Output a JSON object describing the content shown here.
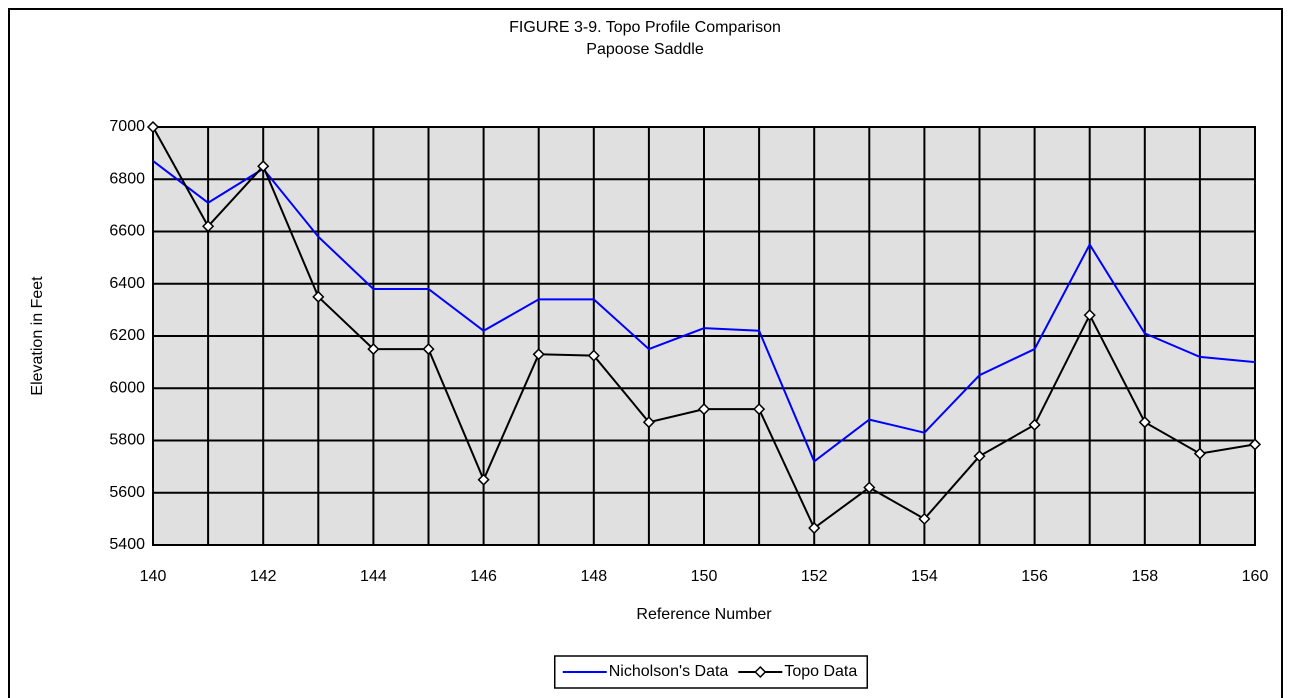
{
  "chart_data": {
    "type": "line",
    "title": "FIGURE 3-9.  Topo Profile Comparison",
    "subtitle": "Papoose Saddle",
    "x_label": "Reference Number",
    "y_label": "Elevation in Feet",
    "x": [
      140,
      141,
      142,
      143,
      144,
      145,
      146,
      147,
      148,
      149,
      150,
      151,
      152,
      153,
      154,
      155,
      156,
      157,
      158,
      159,
      160
    ],
    "series": [
      {
        "name": "Nicholson's Data",
        "color": "#0000ff",
        "marker": "none",
        "values": [
          6870,
          6710,
          6840,
          6580,
          6380,
          6380,
          6220,
          6340,
          6340,
          6150,
          6230,
          6220,
          5720,
          5880,
          5830,
          6050,
          6150,
          6550,
          6210,
          6120,
          6100
        ]
      },
      {
        "name": "Topo Data",
        "color": "#000000",
        "marker": "diamond",
        "values": [
          7000,
          6620,
          6850,
          6350,
          6150,
          6150,
          5650,
          6130,
          6125,
          5870,
          5920,
          5920,
          5465,
          5620,
          5500,
          5740,
          5860,
          6280,
          5870,
          5750,
          5785
        ]
      }
    ],
    "xlim": [
      140,
      160
    ],
    "xticks": [
      140,
      142,
      144,
      146,
      148,
      150,
      152,
      154,
      156,
      158,
      160
    ],
    "xminorticks": [
      141,
      143,
      145,
      147,
      149,
      151,
      153,
      155,
      157,
      159
    ],
    "ylim": [
      5400,
      7000
    ],
    "yticks": [
      5400,
      5600,
      5800,
      6000,
      6200,
      6400,
      6600,
      6800,
      7000
    ],
    "grid": true,
    "legend": "bottom"
  }
}
